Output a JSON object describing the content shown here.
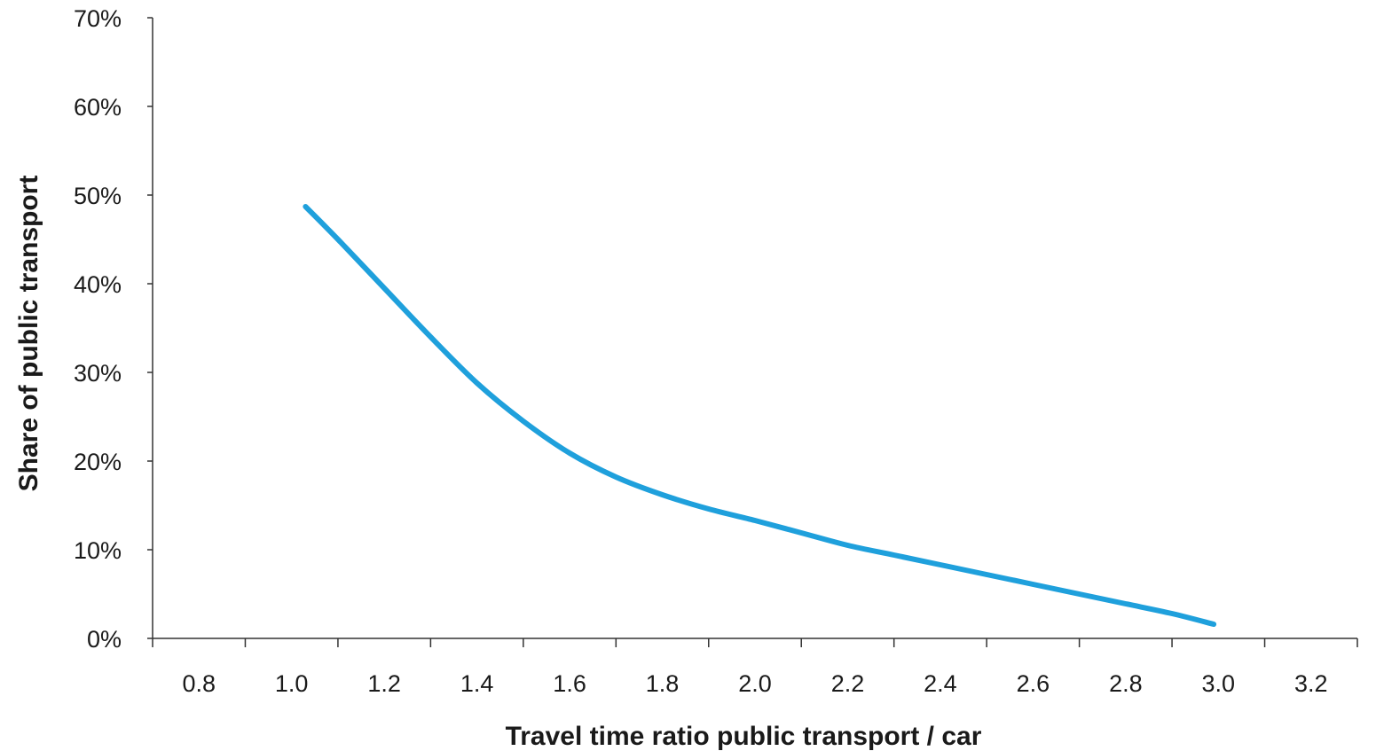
{
  "chart_data": {
    "type": "line",
    "title": "",
    "xlabel": "Travel time ratio public transport / car",
    "ylabel": "Share of public transport",
    "x_ticks": [
      "0.8",
      "1.0",
      "1.2",
      "1.4",
      "1.6",
      "1.8",
      "2.0",
      "2.2",
      "2.4",
      "2.6",
      "2.8",
      "3.0",
      "3.2"
    ],
    "y_ticks": [
      "0%",
      "10%",
      "20%",
      "30%",
      "40%",
      "50%",
      "60%",
      "70%"
    ],
    "xlim": [
      0.7,
      3.3
    ],
    "ylim": [
      0,
      70
    ],
    "grid": false,
    "legend": "none",
    "series": [
      {
        "color": "#1fa0dc",
        "x": [
          1.03,
          1.1,
          1.2,
          1.3,
          1.4,
          1.5,
          1.6,
          1.7,
          1.8,
          1.9,
          2.0,
          2.1,
          2.2,
          2.3,
          2.4,
          2.5,
          2.6,
          2.7,
          2.8,
          2.9,
          2.99
        ],
        "y": [
          48.7,
          45.0,
          39.5,
          34.0,
          28.8,
          24.5,
          20.9,
          18.2,
          16.2,
          14.6,
          13.3,
          11.9,
          10.5,
          9.4,
          8.3,
          7.2,
          6.1,
          5.0,
          3.9,
          2.8,
          1.6
        ]
      }
    ]
  }
}
